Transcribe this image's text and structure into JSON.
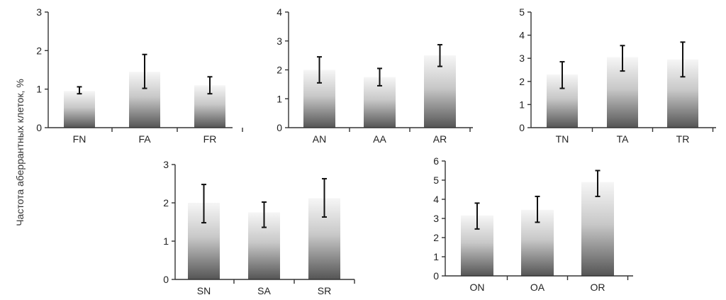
{
  "ylabel": "Частота аберрантных клеток,  %",
  "colors": {
    "bar_top": "#f6f6f6",
    "bar_bottom": "#555555",
    "axis": "#333333",
    "error": "#111111"
  },
  "chart_data": [
    {
      "type": "bar",
      "categories": [
        "FN",
        "FA",
        "FR"
      ],
      "values": [
        0.95,
        1.45,
        1.1
      ],
      "err_low": [
        0.88,
        1.02,
        0.88
      ],
      "err_high": [
        1.06,
        1.9,
        1.32
      ],
      "ylim": [
        0,
        3
      ],
      "yticks": [
        "0",
        "1",
        "2",
        "3"
      ]
    },
    {
      "type": "bar",
      "categories": [
        "AN",
        "AA",
        "AR"
      ],
      "values": [
        2.0,
        1.75,
        2.5
      ],
      "err_low": [
        1.55,
        1.45,
        2.12
      ],
      "err_high": [
        2.45,
        2.05,
        2.87
      ],
      "ylim": [
        0,
        4
      ],
      "yticks": [
        "0",
        "1",
        "2",
        "3",
        "4"
      ]
    },
    {
      "type": "bar",
      "categories": [
        "TN",
        "TA",
        "TR"
      ],
      "values": [
        2.3,
        3.05,
        2.95
      ],
      "err_low": [
        1.7,
        2.45,
        2.2
      ],
      "err_high": [
        2.85,
        3.55,
        3.7
      ],
      "ylim": [
        0,
        5
      ],
      "yticks": [
        "0",
        "1",
        "2",
        "3",
        "4",
        "5"
      ]
    },
    {
      "type": "bar",
      "categories": [
        "SN",
        "SA",
        "SR"
      ],
      "values": [
        2.0,
        1.75,
        2.12
      ],
      "err_low": [
        1.48,
        1.36,
        1.63
      ],
      "err_high": [
        2.48,
        2.02,
        2.63
      ],
      "ylim": [
        0,
        3
      ],
      "yticks": [
        "0",
        "1",
        "2",
        "3"
      ]
    },
    {
      "type": "bar",
      "categories": [
        "ON",
        "OA",
        "OR"
      ],
      "values": [
        3.15,
        3.45,
        4.9
      ],
      "err_low": [
        2.45,
        2.8,
        4.15
      ],
      "err_high": [
        3.8,
        4.15,
        5.5
      ],
      "ylim": [
        0,
        6
      ],
      "yticks": [
        "0",
        "1",
        "2",
        "3",
        "4",
        "5",
        "6"
      ]
    }
  ]
}
